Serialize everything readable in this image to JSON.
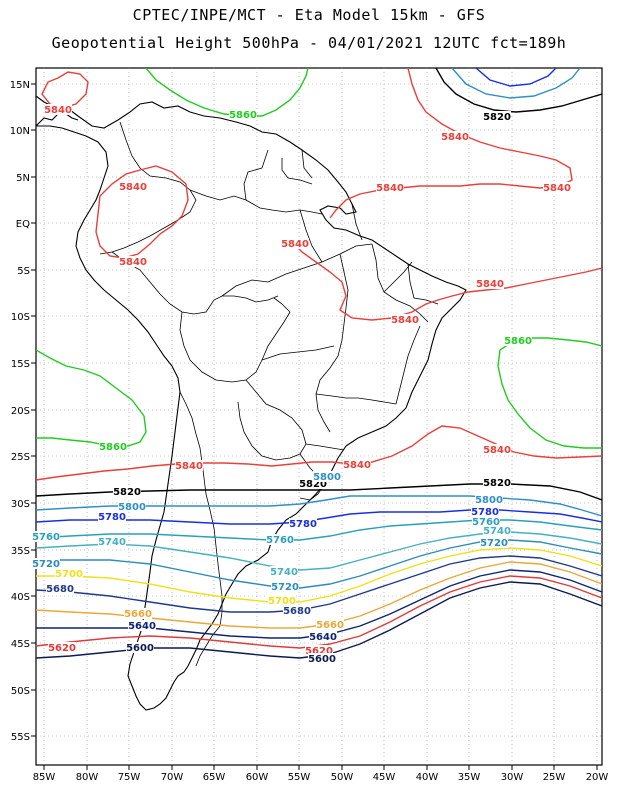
{
  "header": {
    "line1": "CPTEC/INPE/MCT -  Eta Model 15km - GFS",
    "line2": "Geopotential Height 500hPa - 04/01/2021 12UTC fct=189h"
  },
  "axes": {
    "lat_labels": [
      "15N",
      "10N",
      "5N",
      "EQ",
      "5S",
      "10S",
      "15S",
      "20S",
      "25S",
      "30S",
      "35S",
      "40S",
      "45S",
      "50S",
      "55S"
    ],
    "lon_labels": [
      "85W",
      "80W",
      "75W",
      "70W",
      "65W",
      "60W",
      "55W",
      "50W",
      "45W",
      "40W",
      "35W",
      "30W",
      "25W",
      "20W"
    ]
  },
  "colors": {
    "c5860": "#22cc22",
    "c5840": "#e8403a",
    "c5820": "#000000",
    "c5800": "#2f8fc7",
    "c5780": "#1a2ee0",
    "c5760": "#2aa0b8",
    "c5740": "#45b0c0",
    "c5720": "#2c8cbc",
    "c5700": "#f0e018",
    "c5680": "#203a8a",
    "c5660": "#e8a83a",
    "c5640": "#0d2470",
    "c5620": "#e03a3a",
    "c5600": "#0c1a50",
    "grid": "#909090",
    "coast": "#000000"
  },
  "contour_labels": [
    {
      "text": "5860",
      "color": "c5860"
    },
    {
      "text": "5860",
      "color": "c5860"
    },
    {
      "text": "5860",
      "color": "c5860"
    },
    {
      "text": "5840",
      "color": "c5840"
    },
    {
      "text": "5840",
      "color": "c5840"
    },
    {
      "text": "5840",
      "color": "c5840"
    },
    {
      "text": "5840",
      "color": "c5840"
    },
    {
      "text": "5840",
      "color": "c5840"
    },
    {
      "text": "5840",
      "color": "c5840"
    },
    {
      "text": "5840",
      "color": "c5840"
    },
    {
      "text": "5840",
      "color": "c5840"
    },
    {
      "text": "5840",
      "color": "c5840"
    },
    {
      "text": "5840",
      "color": "c5840"
    },
    {
      "text": "5840",
      "color": "c5840"
    },
    {
      "text": "5840",
      "color": "c5840"
    },
    {
      "text": "5820",
      "color": "c5820"
    },
    {
      "text": "5820",
      "color": "c5820"
    },
    {
      "text": "5820",
      "color": "c5820"
    },
    {
      "text": "5820",
      "color": "c5820"
    },
    {
      "text": "5800",
      "color": "c5800"
    },
    {
      "text": "5800",
      "color": "c5800"
    },
    {
      "text": "5800",
      "color": "c5800"
    },
    {
      "text": "5780",
      "color": "c5780"
    },
    {
      "text": "5780",
      "color": "c5780"
    },
    {
      "text": "5780",
      "color": "c5780"
    },
    {
      "text": "5760",
      "color": "c5760"
    },
    {
      "text": "5760",
      "color": "c5760"
    },
    {
      "text": "5760",
      "color": "c5760"
    },
    {
      "text": "5740",
      "color": "c5740"
    },
    {
      "text": "5740",
      "color": "c5740"
    },
    {
      "text": "5740",
      "color": "c5740"
    },
    {
      "text": "5720",
      "color": "c5720"
    },
    {
      "text": "5720",
      "color": "c5720"
    },
    {
      "text": "5720",
      "color": "c5720"
    },
    {
      "text": "5700",
      "color": "c5700"
    },
    {
      "text": "5700",
      "color": "c5700"
    },
    {
      "text": "5680",
      "color": "c5680"
    },
    {
      "text": "5680",
      "color": "c5680"
    },
    {
      "text": "5660",
      "color": "c5660"
    },
    {
      "text": "5660",
      "color": "c5660"
    },
    {
      "text": "5640",
      "color": "c5640"
    },
    {
      "text": "5640",
      "color": "c5640"
    },
    {
      "text": "5620",
      "color": "c5620"
    },
    {
      "text": "5620",
      "color": "c5620"
    },
    {
      "text": "5600",
      "color": "c5600"
    },
    {
      "text": "5600",
      "color": "c5600"
    }
  ]
}
